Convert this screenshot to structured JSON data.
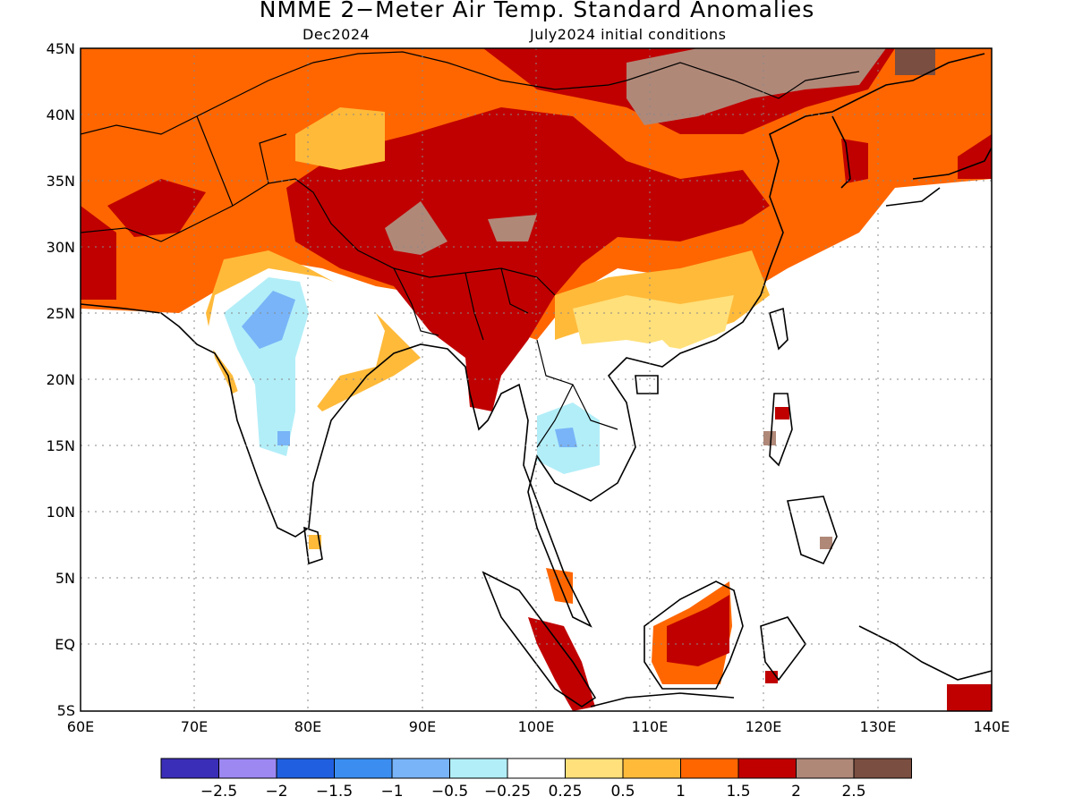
{
  "title": "NMME 2−Meter Air Temp. Standard Anomalies",
  "subtitle_left": "Dec2024",
  "subtitle_right": "July2024 initial conditions",
  "lat_ticks": [
    "45N",
    "40N",
    "35N",
    "30N",
    "25N",
    "20N",
    "15N",
    "10N",
    "5N",
    "EQ",
    "5S"
  ],
  "lon_ticks": [
    "60E",
    "70E",
    "80E",
    "90E",
    "100E",
    "110E",
    "120E",
    "130E",
    "140E"
  ],
  "colorbar": {
    "colors": [
      "#3a2eb8",
      "#9d88f2",
      "#2060e0",
      "#3b8ef0",
      "#78b4f7",
      "#b2eef8",
      "#ffffff",
      "#ffe07a",
      "#ffba3a",
      "#ff6600",
      "#c00000",
      "#b08878",
      "#7a4e40"
    ],
    "labels": [
      "−2.5",
      "−2",
      "−1.5",
      "−1",
      "−0.5",
      "−0.25",
      "0.25",
      "0.5",
      "1",
      "1.5",
      "2",
      "2.5"
    ]
  }
}
